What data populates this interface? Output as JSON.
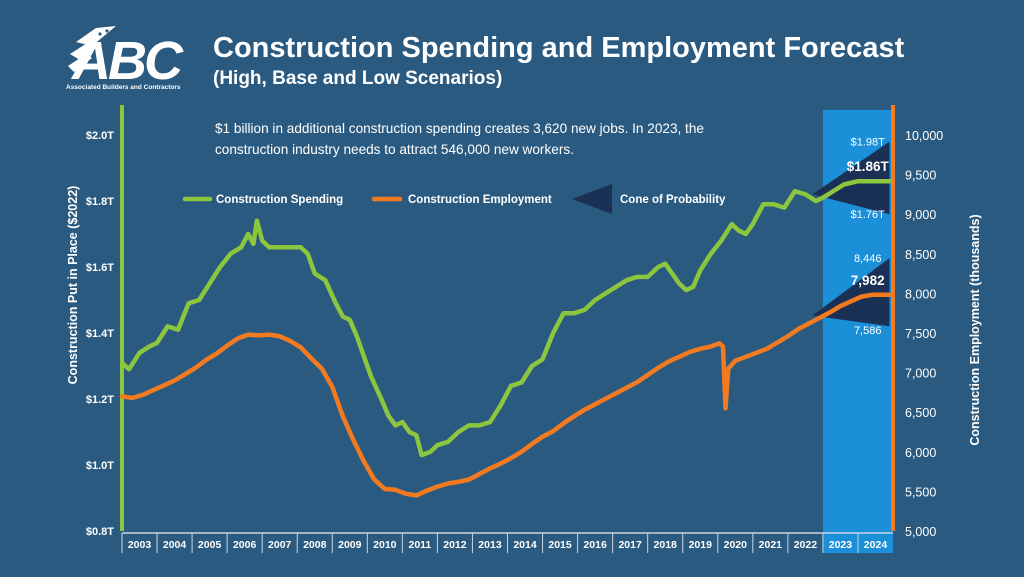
{
  "logo": {
    "text": "ABC",
    "subtitle": "Associated Builders and Contractors"
  },
  "title": "Construction Spending and Employment Forecast",
  "subtitle": "(High, Base and Low Scenarios)",
  "note": "$1 billion in additional construction spending creates 3,620 new jobs. In 2023, the construction industry needs to attract 546,000 new workers.",
  "colors": {
    "background": "#2a5a80",
    "spending": "#8cc63f",
    "employment": "#f47a20",
    "forecast_band": "#1b8fd8",
    "cone": "#1a3054"
  },
  "chart_data": {
    "type": "line",
    "title": "Construction Spending and Employment Forecast",
    "subtitle": "(High, Base and Low Scenarios)",
    "xlabel": "",
    "ylabel_left": "Construction Put in Place ($2022)",
    "ylabel_right": "Construction Employment (thousands)",
    "x_ticks": [
      "2003",
      "2004",
      "2005",
      "2006",
      "2007",
      "2008",
      "2009",
      "2010",
      "2011",
      "2012",
      "2013",
      "2014",
      "2015",
      "2016",
      "2017",
      "2018",
      "2019",
      "2020",
      "2021",
      "2022",
      "2023",
      "2024"
    ],
    "xlim": [
      2003,
      2025
    ],
    "y_left": {
      "range": [
        0.8,
        2.0
      ],
      "ticks": [
        0.8,
        1.0,
        1.2,
        1.4,
        1.6,
        1.8,
        2.0
      ],
      "tick_labels": [
        "$0.8T",
        "$1.0T",
        "$1.2T",
        "$1.4T",
        "$1.6T",
        "$1.8T",
        "$2.0T"
      ]
    },
    "y_right": {
      "range": [
        5000,
        10000
      ],
      "ticks": [
        5000,
        5500,
        6000,
        6500,
        7000,
        7500,
        8000,
        8500,
        9000,
        9500,
        10000
      ],
      "tick_labels": [
        "5,000",
        "5,500",
        "6,000",
        "6,500",
        "7,000",
        "7,500",
        "8,000",
        "8,500",
        "9,000",
        "9,500",
        "10,000"
      ]
    },
    "forecast_region": [
      2023,
      2025
    ],
    "legend": {
      "placement": "top-center",
      "spending": "Construction Spending",
      "employment": "Construction Employment",
      "cone": "Cone of Probability"
    },
    "series": [
      {
        "name": "Construction Spending",
        "axis": "left",
        "points": [
          [
            2003.0,
            1.31
          ],
          [
            2003.2,
            1.29
          ],
          [
            2003.5,
            1.34
          ],
          [
            2003.8,
            1.36
          ],
          [
            2004.0,
            1.37
          ],
          [
            2004.3,
            1.42
          ],
          [
            2004.6,
            1.41
          ],
          [
            2004.9,
            1.49
          ],
          [
            2005.2,
            1.5
          ],
          [
            2005.5,
            1.55
          ],
          [
            2005.8,
            1.6
          ],
          [
            2006.1,
            1.64
          ],
          [
            2006.4,
            1.66
          ],
          [
            2006.6,
            1.7
          ],
          [
            2006.75,
            1.67
          ],
          [
            2006.85,
            1.74
          ],
          [
            2007.0,
            1.68
          ],
          [
            2007.2,
            1.66
          ],
          [
            2007.5,
            1.66
          ],
          [
            2007.8,
            1.66
          ],
          [
            2008.1,
            1.66
          ],
          [
            2008.3,
            1.64
          ],
          [
            2008.5,
            1.58
          ],
          [
            2008.8,
            1.56
          ],
          [
            2009.1,
            1.49
          ],
          [
            2009.3,
            1.45
          ],
          [
            2009.5,
            1.44
          ],
          [
            2009.7,
            1.39
          ],
          [
            2009.9,
            1.33
          ],
          [
            2010.1,
            1.27
          ],
          [
            2010.4,
            1.2
          ],
          [
            2010.6,
            1.15
          ],
          [
            2010.8,
            1.12
          ],
          [
            2011.0,
            1.13
          ],
          [
            2011.2,
            1.1
          ],
          [
            2011.4,
            1.09
          ],
          [
            2011.55,
            1.03
          ],
          [
            2011.8,
            1.04
          ],
          [
            2012.0,
            1.06
          ],
          [
            2012.3,
            1.07
          ],
          [
            2012.6,
            1.1
          ],
          [
            2012.9,
            1.12
          ],
          [
            2013.2,
            1.12
          ],
          [
            2013.5,
            1.13
          ],
          [
            2013.8,
            1.18
          ],
          [
            2014.1,
            1.24
          ],
          [
            2014.4,
            1.25
          ],
          [
            2014.7,
            1.3
          ],
          [
            2015.0,
            1.32
          ],
          [
            2015.3,
            1.4
          ],
          [
            2015.6,
            1.46
          ],
          [
            2015.9,
            1.46
          ],
          [
            2016.2,
            1.47
          ],
          [
            2016.5,
            1.5
          ],
          [
            2016.8,
            1.52
          ],
          [
            2017.1,
            1.54
          ],
          [
            2017.4,
            1.56
          ],
          [
            2017.7,
            1.57
          ],
          [
            2018.0,
            1.57
          ],
          [
            2018.3,
            1.6
          ],
          [
            2018.5,
            1.61
          ],
          [
            2018.7,
            1.58
          ],
          [
            2018.9,
            1.55
          ],
          [
            2019.1,
            1.53
          ],
          [
            2019.3,
            1.54
          ],
          [
            2019.5,
            1.59
          ],
          [
            2019.8,
            1.64
          ],
          [
            2020.1,
            1.68
          ],
          [
            2020.4,
            1.73
          ],
          [
            2020.6,
            1.71
          ],
          [
            2020.8,
            1.7
          ],
          [
            2021.0,
            1.73
          ],
          [
            2021.3,
            1.79
          ],
          [
            2021.6,
            1.79
          ],
          [
            2021.9,
            1.78
          ],
          [
            2022.2,
            1.83
          ],
          [
            2022.5,
            1.82
          ],
          [
            2022.8,
            1.8
          ],
          [
            2023.0,
            1.81
          ],
          [
            2023.3,
            1.83
          ],
          [
            2023.6,
            1.85
          ],
          [
            2024.0,
            1.86
          ],
          [
            2024.9,
            1.86
          ]
        ]
      },
      {
        "name": "Construction Employment",
        "axis": "right",
        "points": [
          [
            2003.0,
            6700
          ],
          [
            2003.3,
            6680
          ],
          [
            2003.6,
            6720
          ],
          [
            2003.9,
            6780
          ],
          [
            2004.2,
            6840
          ],
          [
            2004.5,
            6900
          ],
          [
            2004.8,
            6980
          ],
          [
            2005.1,
            7060
          ],
          [
            2005.4,
            7160
          ],
          [
            2005.7,
            7240
          ],
          [
            2006.0,
            7340
          ],
          [
            2006.3,
            7430
          ],
          [
            2006.6,
            7480
          ],
          [
            2006.9,
            7470
          ],
          [
            2007.2,
            7480
          ],
          [
            2007.5,
            7460
          ],
          [
            2007.8,
            7400
          ],
          [
            2008.1,
            7320
          ],
          [
            2008.4,
            7180
          ],
          [
            2008.7,
            7050
          ],
          [
            2009.0,
            6820
          ],
          [
            2009.3,
            6450
          ],
          [
            2009.6,
            6150
          ],
          [
            2009.9,
            5880
          ],
          [
            2010.2,
            5650
          ],
          [
            2010.5,
            5530
          ],
          [
            2010.8,
            5520
          ],
          [
            2011.1,
            5470
          ],
          [
            2011.4,
            5450
          ],
          [
            2011.7,
            5510
          ],
          [
            2012.0,
            5560
          ],
          [
            2012.3,
            5600
          ],
          [
            2012.6,
            5620
          ],
          [
            2012.9,
            5650
          ],
          [
            2013.2,
            5720
          ],
          [
            2013.5,
            5790
          ],
          [
            2013.8,
            5850
          ],
          [
            2014.1,
            5920
          ],
          [
            2014.4,
            6000
          ],
          [
            2014.7,
            6100
          ],
          [
            2015.0,
            6190
          ],
          [
            2015.3,
            6260
          ],
          [
            2015.6,
            6360
          ],
          [
            2015.9,
            6450
          ],
          [
            2016.2,
            6530
          ],
          [
            2016.5,
            6600
          ],
          [
            2016.8,
            6670
          ],
          [
            2017.1,
            6740
          ],
          [
            2017.4,
            6810
          ],
          [
            2017.7,
            6880
          ],
          [
            2018.0,
            6970
          ],
          [
            2018.3,
            7060
          ],
          [
            2018.6,
            7140
          ],
          [
            2018.9,
            7200
          ],
          [
            2019.2,
            7260
          ],
          [
            2019.5,
            7300
          ],
          [
            2019.8,
            7330
          ],
          [
            2020.05,
            7370
          ],
          [
            2020.15,
            7330
          ],
          [
            2020.22,
            6550
          ],
          [
            2020.3,
            7050
          ],
          [
            2020.5,
            7150
          ],
          [
            2020.8,
            7200
          ],
          [
            2021.1,
            7250
          ],
          [
            2021.4,
            7300
          ],
          [
            2021.7,
            7380
          ],
          [
            2022.0,
            7460
          ],
          [
            2022.3,
            7550
          ],
          [
            2022.6,
            7620
          ],
          [
            2022.9,
            7690
          ],
          [
            2023.2,
            7760
          ],
          [
            2023.5,
            7840
          ],
          [
            2023.8,
            7900
          ],
          [
            2024.1,
            7960
          ],
          [
            2024.4,
            7982
          ],
          [
            2024.9,
            7982
          ]
        ]
      }
    ],
    "cones": [
      {
        "series": "Construction Spending",
        "high": 1.98,
        "base": 1.86,
        "low": 1.76,
        "labels": {
          "high": "$1.98T",
          "base": "$1.86T",
          "low": "$1.76T"
        }
      },
      {
        "series": "Construction Employment",
        "high": 8446,
        "base": 7982,
        "low": 7586,
        "labels": {
          "high": "8,446",
          "base": "7,982",
          "low": "7,586"
        }
      }
    ]
  }
}
